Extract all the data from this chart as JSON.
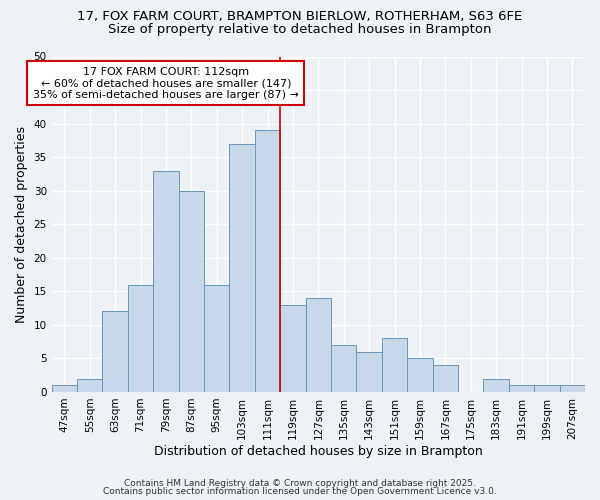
{
  "title_line1": "17, FOX FARM COURT, BRAMPTON BIERLOW, ROTHERHAM, S63 6FE",
  "title_line2": "Size of property relative to detached houses in Brampton",
  "xlabel": "Distribution of detached houses by size in Brampton",
  "ylabel": "Number of detached properties",
  "bar_labels": [
    "47sqm",
    "55sqm",
    "63sqm",
    "71sqm",
    "79sqm",
    "87sqm",
    "95sqm",
    "103sqm",
    "111sqm",
    "119sqm",
    "127sqm",
    "135sqm",
    "143sqm",
    "151sqm",
    "159sqm",
    "167sqm",
    "175sqm",
    "183sqm",
    "191sqm",
    "199sqm",
    "207sqm"
  ],
  "bar_values": [
    1,
    2,
    12,
    16,
    33,
    30,
    16,
    37,
    39,
    13,
    14,
    7,
    6,
    8,
    5,
    4,
    0,
    2,
    1,
    1,
    1
  ],
  "bar_color": "#c8d8e8",
  "bar_edge_color": "#6699bb",
  "annotation_line1": "17 FOX FARM COURT: 112sqm",
  "annotation_line2": "← 60% of detached houses are smaller (147)",
  "annotation_line3": "35% of semi-detached houses are larger (87) →",
  "vline_x": 8.5,
  "vline_color": "#cc0000",
  "annotation_box_color": "#ffffff",
  "annotation_box_edgecolor": "#cc0000",
  "ylim": [
    0,
    50
  ],
  "yticks": [
    0,
    5,
    10,
    15,
    20,
    25,
    30,
    35,
    40,
    45,
    50
  ],
  "footer_line1": "Contains HM Land Registry data © Crown copyright and database right 2025.",
  "footer_line2": "Contains public sector information licensed under the Open Government Licence v3.0.",
  "background_color": "#eef2f7",
  "grid_color": "#ffffff",
  "title_fontsize": 9.5,
  "subtitle_fontsize": 9.5,
  "axis_label_fontsize": 9,
  "tick_fontsize": 7.5,
  "annotation_fontsize": 8,
  "footer_fontsize": 6.5
}
